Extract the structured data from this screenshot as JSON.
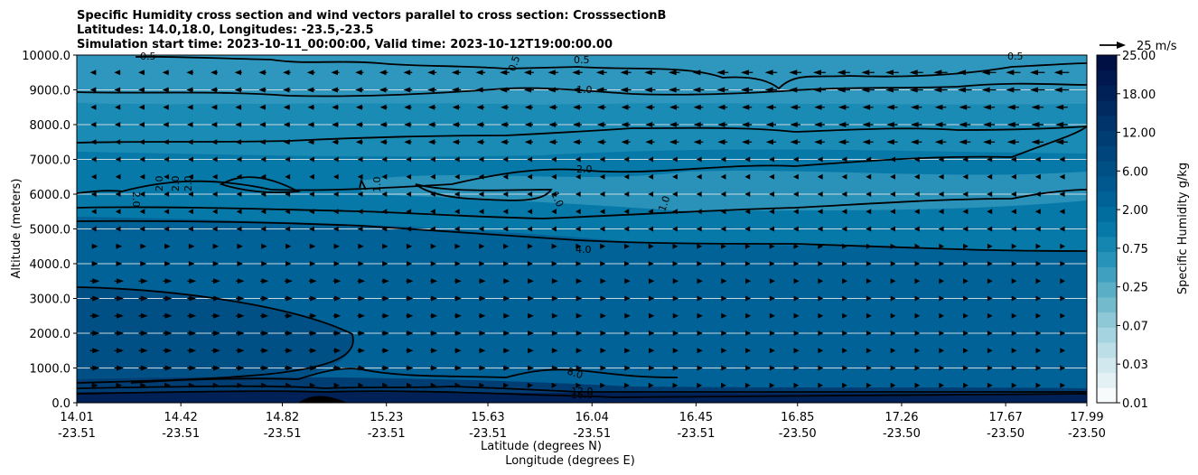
{
  "chart_data": {
    "type": "contourf",
    "title_lines": [
      "Specific Humidity cross section and wind vectors parallel to cross section: CrosssectionB",
      "Latitudes: 14.0,18.0, Longitudes: -23.5,-23.5",
      "Simulation start time: 2023-10-11_00:00:00, Valid time: 2023-10-12T19:00:00.00"
    ],
    "ylabel": "Altitude (meters)",
    "xlabel_lat": "Latitude (degrees N)",
    "xlabel_lon": "Longitude (degrees E)",
    "ylim": [
      0,
      10000
    ],
    "yticks": [
      "0.0",
      "1000.0",
      "2000.0",
      "3000.0",
      "4000.0",
      "5000.0",
      "6000.0",
      "7000.0",
      "8000.0",
      "9000.0",
      "10000.0"
    ],
    "xticks_lat": [
      "14.01",
      "14.42",
      "14.82",
      "15.23",
      "15.63",
      "16.04",
      "16.45",
      "16.85",
      "17.26",
      "17.67",
      "17.99"
    ],
    "xticks_lon": [
      "-23.51",
      "-23.51",
      "-23.51",
      "-23.51",
      "-23.51",
      "-23.51",
      "-23.51",
      "-23.50",
      "-23.50",
      "-23.50",
      "-23.50"
    ],
    "colorbar": {
      "label": "Specific Humidity g/kg",
      "tick_labels": [
        "0.01",
        "0.03",
        "0.07",
        "0.25",
        "0.75",
        "2.00",
        "6.00",
        "12.00",
        "18.00",
        "25.00"
      ],
      "colors": [
        "#f7fbfc",
        "#e4f1f4",
        "#d0e8ee",
        "#bcdfe7",
        "#a5d3df",
        "#8ec7d6",
        "#74bacd",
        "#5aaec6",
        "#3fa0bf",
        "#2893b8",
        "#1586b0",
        "#0679a8",
        "#006d9f",
        "#006297",
        "#00588e",
        "#004f85",
        "#00467c",
        "#003d73",
        "#00346a",
        "#002a60",
        "#002157",
        "#00184e",
        "#001045"
      ]
    },
    "quiver_key": "25 m/s",
    "contour_labels": [
      "0.5",
      "0.5",
      "0.5",
      "0.5",
      "1.0",
      "1.0",
      "1.0",
      "1.0",
      "2.0",
      "2.0",
      "2.0",
      "2.0",
      "2.0",
      "4.0",
      "8.0",
      "12.0",
      "16.0"
    ]
  }
}
